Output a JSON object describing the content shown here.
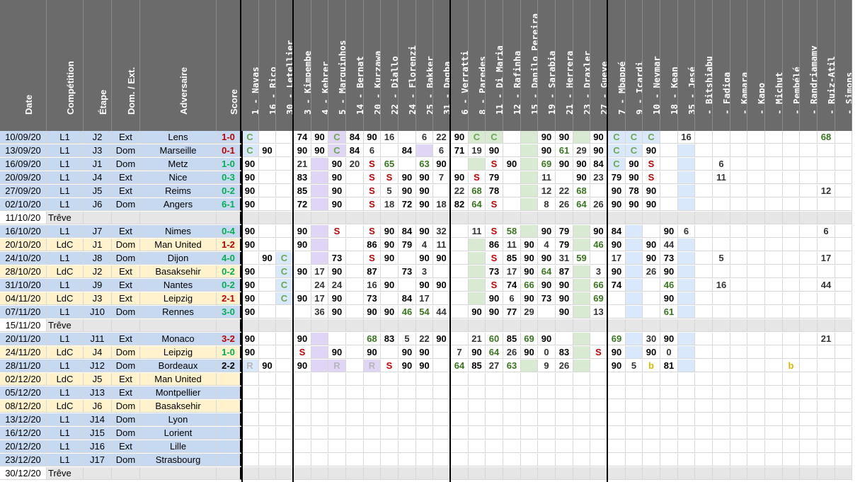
{
  "meta_headers": [
    "Date",
    "Compétition",
    "Étape",
    "Dom. / Ext.",
    "Adversaire",
    "Score"
  ],
  "players": [
    "1 - Navas",
    "16 - Rico",
    "30 - Letellier",
    "3 - Kimpembe",
    "4 - Kehrer",
    "5 - Marquinhos",
    "14 - Bernat",
    "20 - Kurzawa",
    "22 - Diallo",
    "24 - Florenzi",
    "25 - Bakker",
    "31 - Dagba",
    "6 - Verratti",
    "8 - Paredes",
    "11 - Di Maria",
    "12 - Rafinha",
    "15 - Danilo Pereira",
    "19 - Sarabia",
    "21 - Herrera",
    "23 - Draxler",
    "27 - Gueye",
    "7 - Mbappé",
    "9 - Icardi",
    "10 - Neymar",
    "18 - Kean",
    "35 - Jesé",
    "- Bitshiabu",
    "- Fadiga",
    "- Kamara",
    "- Kapo",
    "- Michut",
    "- Pembélé",
    "- Randriamamy",
    "- Ruiz-Atil",
    "- Simons"
  ],
  "colors": {
    "header": "#6b6b6b",
    "l1": "#c6d9f0",
    "ldc": "#fff2cc",
    "treve": "#e6e6e6",
    "win": "#00b050",
    "draw": "#000000",
    "loss": "#c00000",
    "gk": "#dae8fc",
    "def": "#e1d5f5",
    "mid": "#d9ead3",
    "att": "#dae8fc",
    "inj": "#f4cccc",
    "sus": "#fff2cc"
  },
  "rows": [
    {
      "date": "10/09/20",
      "comp": "L1",
      "step": "J2",
      "venue": "Ext",
      "opp": "Lens",
      "score": "1-0",
      "res": "L",
      "cells": {
        "0": "C",
        "3": "74",
        "4": "90",
        "5": "C",
        "6": "84",
        "7": "90",
        "8": "16",
        "10": "6",
        "11": "22",
        "12": "90",
        "13": "C",
        "14": "C",
        "17": "90",
        "18": "90",
        "20": "90",
        "21": "C",
        "22": "C",
        "23": "C",
        "25": "16",
        "33": "68"
      }
    },
    {
      "date": "13/09/20",
      "comp": "L1",
      "step": "J3",
      "venue": "Dom",
      "opp": "Marseille",
      "score": "0-1",
      "res": "L",
      "cells": {
        "0": "C",
        "1": "90",
        "3": "90",
        "4": "90",
        "5": "C",
        "6": "84",
        "7": "6",
        "9": "84",
        "11": "6",
        "12": "71",
        "13": "19",
        "14": "90",
        "17": "90",
        "18": "61",
        "19": "29",
        "20": "90",
        "21": "C",
        "22": "C",
        "23": "90"
      }
    },
    {
      "date": "16/09/20",
      "comp": "L1",
      "step": "J1",
      "venue": "Dom",
      "opp": "Metz",
      "score": "1-0",
      "res": "W",
      "cells": {
        "0": "90",
        "3": "21",
        "5": "90",
        "6": "20",
        "7": "S",
        "8": "65",
        "10": "63",
        "11": "90",
        "14": "S",
        "15": "90",
        "17": "69",
        "18": "90",
        "19": "90",
        "20": "84",
        "21": "C",
        "22": "90",
        "23": "S",
        "27": "6"
      }
    },
    {
      "date": "20/09/20",
      "comp": "L1",
      "step": "J4",
      "venue": "Ext",
      "opp": "Nice",
      "score": "0-3",
      "res": "W",
      "cells": {
        "0": "90",
        "3": "83",
        "5": "90",
        "7": "S",
        "8": "S",
        "9": "90",
        "10": "90",
        "11": "7",
        "12": "90",
        "13": "S",
        "14": "79",
        "17": "11",
        "19": "90",
        "20": "23",
        "21": "79",
        "22": "90",
        "23": "S",
        "27": "11"
      }
    },
    {
      "date": "27/09/20",
      "comp": "L1",
      "step": "J5",
      "venue": "Ext",
      "opp": "Reims",
      "score": "0-2",
      "res": "W",
      "cells": {
        "0": "90",
        "3": "85",
        "5": "90",
        "7": "S",
        "8": "5",
        "9": "90",
        "10": "90",
        "12": "22",
        "13": "68",
        "14": "78",
        "17": "12",
        "18": "22",
        "19": "68",
        "21": "90",
        "22": "78",
        "23": "90",
        "33": "12"
      }
    },
    {
      "date": "02/10/20",
      "comp": "L1",
      "step": "J6",
      "venue": "Dom",
      "opp": "Angers",
      "score": "6-1",
      "res": "W",
      "cells": {
        "0": "90",
        "3": "72",
        "5": "90",
        "7": "S",
        "8": "18",
        "9": "72",
        "10": "90",
        "11": "18",
        "12": "82",
        "13": "64",
        "14": "S",
        "17": "8",
        "18": "26",
        "19": "64",
        "20": "26",
        "21": "90",
        "22": "90",
        "23": "90"
      }
    },
    {
      "date": "11/10/20",
      "comp": "Trêve",
      "step": "",
      "venue": "",
      "opp": "",
      "score": "",
      "res": "",
      "treve": true,
      "cells": {}
    },
    {
      "date": "16/10/20",
      "comp": "L1",
      "step": "J7",
      "venue": "Ext",
      "opp": "Nimes",
      "score": "0-4",
      "res": "W",
      "cells": {
        "0": "90",
        "3": "90",
        "5": "S",
        "7": "S",
        "8": "90",
        "9": "84",
        "10": "90",
        "11": "32",
        "13": "11",
        "14": "S",
        "15": "58",
        "17": "90",
        "18": "79",
        "20": "90",
        "21": "84",
        "24": "90",
        "25": "6",
        "33": "6"
      }
    },
    {
      "date": "20/10/20",
      "comp": "LdC",
      "step": "J1",
      "venue": "Dom",
      "opp": "Man United",
      "score": "1-2",
      "res": "L",
      "cells": {
        "0": "90",
        "3": "90",
        "7": "86",
        "8": "90",
        "9": "79",
        "10": "4",
        "11": "11",
        "14": "86",
        "15": "11",
        "16": "90",
        "17": "4",
        "18": "79",
        "20": "46",
        "21": "90",
        "23": "90",
        "24": "44"
      }
    },
    {
      "date": "24/10/20",
      "comp": "L1",
      "step": "J8",
      "venue": "Dom",
      "opp": "Dijon",
      "score": "4-0",
      "res": "W",
      "cells": {
        "1": "90",
        "2": "C",
        "5": "73",
        "7": "S",
        "8": "90",
        "10": "90",
        "11": "90",
        "14": "S",
        "15": "85",
        "16": "90",
        "17": "90",
        "18": "31",
        "19": "59",
        "21": "17",
        "23": "90",
        "24": "73",
        "27": "5",
        "33": "17"
      }
    },
    {
      "date": "28/10/20",
      "comp": "LdC",
      "step": "J2",
      "venue": "Ext",
      "opp": "Basaksehir",
      "score": "0-2",
      "res": "W",
      "cells": {
        "0": "90",
        "2": "C",
        "3": "90",
        "4": "17",
        "5": "90",
        "7": "87",
        "9": "73",
        "10": "3",
        "14": "73",
        "15": "17",
        "16": "90",
        "17": "64",
        "18": "87",
        "20": "3",
        "21": "90",
        "23": "26",
        "24": "90"
      }
    },
    {
      "date": "31/10/20",
      "comp": "L1",
      "step": "J9",
      "venue": "Ext",
      "opp": "Nantes",
      "score": "0-2",
      "res": "W",
      "cells": {
        "0": "90",
        "2": "C",
        "4": "24",
        "5": "24",
        "7": "16",
        "8": "90",
        "10": "90",
        "11": "90",
        "14": "S",
        "15": "74",
        "16": "66",
        "17": "90",
        "18": "90",
        "20": "66",
        "21": "74",
        "24": "46",
        "27": "16",
        "33": "44"
      }
    },
    {
      "date": "04/11/20",
      "comp": "LdC",
      "step": "J3",
      "venue": "Ext",
      "opp": "Leipzig",
      "score": "2-1",
      "res": "L",
      "cells": {
        "0": "90",
        "2": "C",
        "3": "90",
        "4": "17",
        "5": "90",
        "7": "73",
        "9": "84",
        "10": "17",
        "14": "90",
        "15": "6",
        "16": "90",
        "17": "73",
        "18": "90",
        "20": "69",
        "24": "90"
      }
    },
    {
      "date": "07/11/20",
      "comp": "L1",
      "step": "J10",
      "venue": "Dom",
      "opp": "Rennes",
      "score": "3-0",
      "res": "W",
      "cells": {
        "0": "90",
        "4": "36",
        "5": "90",
        "7": "90",
        "8": "90",
        "9": "46",
        "10": "54",
        "11": "44",
        "13": "90",
        "14": "90",
        "15": "77",
        "16": "29",
        "18": "90",
        "20": "13",
        "24": "61"
      }
    },
    {
      "date": "15/11/20",
      "comp": "Trêve",
      "step": "",
      "venue": "",
      "opp": "",
      "score": "",
      "res": "",
      "treve": true,
      "cells": {}
    },
    {
      "date": "20/11/20",
      "comp": "L1",
      "step": "J11",
      "venue": "Ext",
      "opp": "Monaco",
      "score": "3-2",
      "res": "L",
      "cells": {
        "0": "90",
        "3": "90",
        "7": "68",
        "8": "83",
        "9": "5",
        "10": "22",
        "11": "90",
        "13": "21",
        "14": "60",
        "15": "85",
        "16": "69",
        "17": "90",
        "21": "69",
        "23": "30",
        "24": "90",
        "33": "21"
      }
    },
    {
      "date": "24/11/20",
      "comp": "LdC",
      "step": "J4",
      "venue": "Dom",
      "opp": "Leipzig",
      "score": "1-0",
      "res": "W",
      "cells": {
        "0": "90",
        "3": "S",
        "5": "90",
        "7": "90",
        "9": "90",
        "10": "90",
        "12": "7",
        "13": "90",
        "14": "64",
        "15": "26",
        "16": "90",
        "17": "0",
        "18": "83",
        "20": "S",
        "21": "90",
        "23": "90",
        "24": "0"
      }
    },
    {
      "date": "28/11/20",
      "comp": "L1",
      "step": "J12",
      "venue": "Dom",
      "opp": "Bordeaux",
      "score": "2-2",
      "res": "D",
      "cells": {
        "0": "R",
        "1": "90",
        "3": "90",
        "5": "R",
        "7": "R",
        "8": "S",
        "9": "90",
        "10": "90",
        "12": "64",
        "13": "85",
        "14": "27",
        "15": "63",
        "17": "9",
        "18": "26",
        "21": "90",
        "22": "5",
        "23": "b",
        "24": "81",
        "31": "b"
      }
    },
    {
      "date": "02/12/20",
      "comp": "LdC",
      "step": "J5",
      "venue": "Ext",
      "opp": "Man United",
      "score": "",
      "res": "",
      "cells": {}
    },
    {
      "date": "05/12/20",
      "comp": "L1",
      "step": "J13",
      "venue": "Ext",
      "opp": "Montpellier",
      "score": "",
      "res": "",
      "cells": {}
    },
    {
      "date": "08/12/20",
      "comp": "LdC",
      "step": "J6",
      "venue": "Dom",
      "opp": "Basaksehir",
      "score": "",
      "res": "",
      "cells": {}
    },
    {
      "date": "13/12/20",
      "comp": "L1",
      "step": "J14",
      "venue": "Dom",
      "opp": "Lyon",
      "score": "",
      "res": "",
      "cells": {}
    },
    {
      "date": "16/12/20",
      "comp": "L1",
      "step": "J15",
      "venue": "Dom",
      "opp": "Lorient",
      "score": "",
      "res": "",
      "cells": {}
    },
    {
      "date": "20/12/20",
      "comp": "L1",
      "step": "J16",
      "venue": "Ext",
      "opp": "Lille",
      "score": "",
      "res": "",
      "cells": {}
    },
    {
      "date": "23/12/20",
      "comp": "L1",
      "step": "J17",
      "venue": "Dom",
      "opp": "Strasbourg",
      "score": "",
      "res": "",
      "cells": {}
    },
    {
      "date": "30/12/20",
      "comp": "Trêve",
      "step": "",
      "venue": "",
      "opp": "",
      "score": "",
      "res": "",
      "treve": true,
      "cells": {}
    }
  ]
}
